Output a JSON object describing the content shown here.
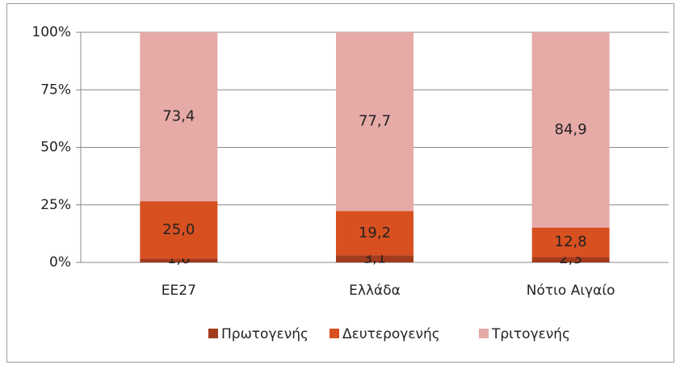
{
  "chart_data": {
    "type": "stacked_bar_100",
    "categories": [
      "ΕΕ27",
      "Ελλάδα",
      "Νότιο Αιγαίο"
    ],
    "series": [
      {
        "name": "Πρωτογενής",
        "color": "#a23a1c",
        "values": [
          1.6,
          3.1,
          2.3
        ],
        "value_labels": [
          "1,6",
          "3,1",
          "2,3"
        ]
      },
      {
        "name": "Δευτερογενής",
        "color": "#d85020",
        "values": [
          25.0,
          19.2,
          12.8
        ],
        "value_labels": [
          "25,0",
          "19,2",
          "12,8"
        ]
      },
      {
        "name": "Τριτογενής",
        "color": "#e6aaa7",
        "values": [
          73.4,
          77.7,
          84.9
        ],
        "value_labels": [
          "73,4",
          "77,7",
          "84,9"
        ]
      }
    ],
    "ylim": [
      0,
      100
    ],
    "yticks": [
      {
        "value": 0,
        "label": "0%"
      },
      {
        "value": 25,
        "label": "25%"
      },
      {
        "value": 50,
        "label": "50%"
      },
      {
        "value": 75,
        "label": "75%"
      },
      {
        "value": 100,
        "label": "100%"
      }
    ],
    "grid": true,
    "legend": "bottom"
  }
}
